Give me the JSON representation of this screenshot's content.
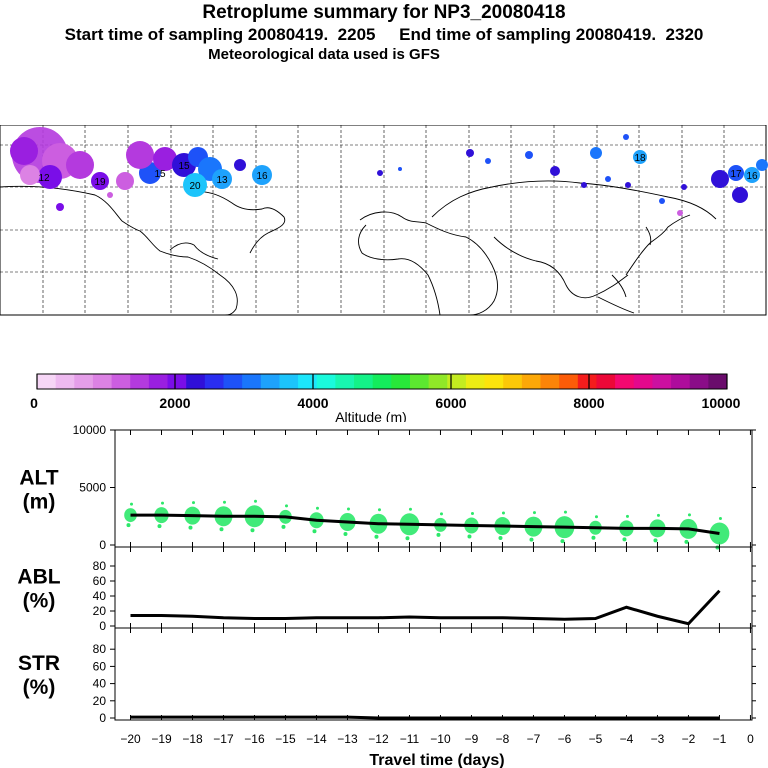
{
  "header": {
    "title": "Retroplume summary for NP3_20080418",
    "subtitle": "Start time of sampling 20080419.  2205     End time of sampling 20080419.  2320",
    "met": "Meteorological data used is GFS"
  },
  "colorbar": {
    "label": "Altitude (m)",
    "ticks": [
      "0",
      "2000",
      "4000",
      "6000",
      "8000",
      "10000"
    ],
    "colors": [
      "#f6d6f6",
      "#eebaf0",
      "#e59ee9",
      "#dc82e4",
      "#cc5ee0",
      "#b43ade",
      "#9a1fe0",
      "#7a0ee8",
      "#3010d8",
      "#2a2ef0",
      "#1e52f8",
      "#1a76fc",
      "#1ea2fc",
      "#1cc4fb",
      "#1ce6fb",
      "#1afadc",
      "#18f6b0",
      "#14f288",
      "#14ec5c",
      "#28e83a",
      "#5ce830",
      "#90e828",
      "#c4ec20",
      "#ecec14",
      "#fce40c",
      "#fcc808",
      "#fca808",
      "#fc8408",
      "#fc5c08",
      "#f41c1c",
      "#ec0838",
      "#f40870",
      "#e4088c",
      "#cc10a0",
      "#ae0c9c",
      "#8a0c88",
      "#6a0c6c"
    ]
  },
  "chart_data": [
    {
      "type": "line",
      "panel": "ALT",
      "ylabel": "ALT\n(m)",
      "ylim": [
        0,
        10000
      ],
      "yticks": [
        "0",
        "5000",
        "10000"
      ],
      "x": [
        -20,
        -19,
        -18,
        -17,
        -16,
        -15,
        -14,
        -13,
        -12,
        -11,
        -10,
        -9,
        -8,
        -7,
        -6,
        -5,
        -4,
        -3,
        -2,
        -1
      ],
      "values": [
        2600,
        2600,
        2550,
        2500,
        2500,
        2450,
        2150,
        2000,
        1850,
        1800,
        1750,
        1700,
        1650,
        1600,
        1550,
        1500,
        1450,
        1450,
        1400,
        1000
      ]
    },
    {
      "type": "line",
      "panel": "ABL",
      "ylabel": "ABL\n(%)",
      "ylim": [
        0,
        100
      ],
      "yticks": [
        "0",
        "20",
        "40",
        "60",
        "80"
      ],
      "x": [
        -20,
        -19,
        -18,
        -17,
        -16,
        -15,
        -14,
        -13,
        -12,
        -11,
        -10,
        -9,
        -8,
        -7,
        -6,
        -5,
        -4,
        -3,
        -2,
        -1
      ],
      "values": [
        14,
        14,
        13,
        11,
        10,
        10,
        11,
        11,
        11,
        12,
        11,
        11,
        11,
        10,
        9,
        10,
        25,
        13,
        3,
        47
      ]
    },
    {
      "type": "line",
      "panel": "STR",
      "ylabel": "STR\n(%)",
      "ylim": [
        0,
        100
      ],
      "yticks": [
        "0",
        "20",
        "40",
        "60",
        "80"
      ],
      "x": [
        -20,
        -19,
        -18,
        -17,
        -16,
        -15,
        -14,
        -13,
        -12,
        -11,
        -10,
        -9,
        -8,
        -7,
        -6,
        -5,
        -4,
        -3,
        -2,
        -1
      ],
      "values": [
        1,
        1,
        1,
        1,
        1,
        1,
        1,
        1,
        0,
        0,
        0,
        0,
        0,
        0,
        0,
        0,
        0,
        0,
        0,
        0
      ]
    }
  ],
  "xaxis": {
    "label": "Travel time (days)",
    "ticks": [
      -20,
      -19,
      -18,
      -17,
      -16,
      -15,
      -14,
      -13,
      -12,
      -11,
      -10,
      -9,
      -8,
      -7,
      -6,
      -5,
      -4,
      -3,
      -2,
      -1,
      0
    ],
    "ticklabels": [
      "−20",
      "−19",
      "−18",
      "−17",
      "−16",
      "−15",
      "−14",
      "−13",
      "−12",
      "−11",
      "−10",
      "−9",
      "−8",
      "−7",
      "−6",
      "−5",
      "−4",
      "−3",
      "−2",
      "−1",
      "0"
    ]
  },
  "map": {
    "plume_labels": [
      "15",
      "12",
      "20",
      "16",
      "13",
      "19",
      "15",
      "18",
      "17",
      "16"
    ]
  }
}
